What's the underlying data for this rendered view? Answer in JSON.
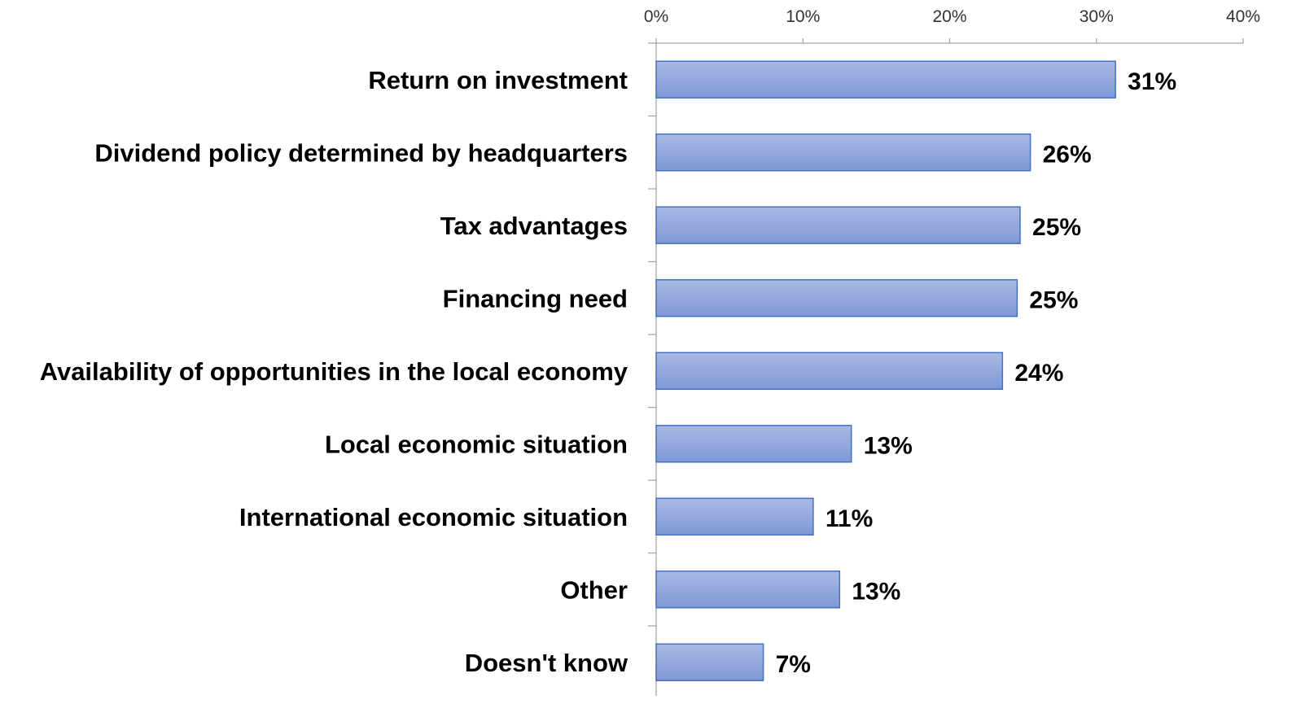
{
  "chart_data": {
    "type": "bar",
    "orientation": "horizontal",
    "categories": [
      "Return on investment",
      "Dividend policy determined by headquarters",
      "Tax advantages",
      "Financing need",
      "Availability of opportunities in the local economy",
      "Local economic situation",
      "International economic situation",
      "Other",
      "Doesn't know"
    ],
    "values": [
      31.3,
      25.5,
      24.8,
      24.6,
      23.6,
      13.3,
      10.7,
      12.5,
      7.3
    ],
    "data_labels": [
      "31%",
      "26%",
      "25%",
      "25%",
      "24%",
      "13%",
      "11%",
      "13%",
      "7%"
    ],
    "x_ticks": [
      "0%",
      "10%",
      "20%",
      "30%",
      "40%"
    ],
    "xlim": [
      0,
      40
    ],
    "x_axis_position": "top",
    "grid": false,
    "legend": "none",
    "bar_color": "#8ea5db",
    "bar_edge_color": "#4472c4"
  }
}
